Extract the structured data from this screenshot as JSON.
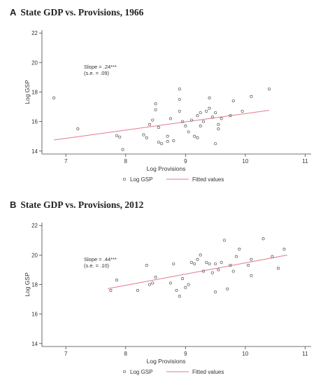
{
  "chart_data": [
    {
      "panel": "A",
      "type": "scatter",
      "title": "State GDP vs. Provisions, 1966",
      "xlabel": "Log Provisions",
      "ylabel": "Log GSP",
      "xlim": [
        6.6,
        11.1
      ],
      "ylim": [
        13.8,
        22.2
      ],
      "xticks": [
        7,
        8,
        9,
        10,
        11
      ],
      "yticks": [
        14,
        16,
        18,
        20,
        22
      ],
      "grid": false,
      "legend_position": "bottom-center",
      "annotation": [
        "Slope = .24***",
        "(s.e. = .09)"
      ],
      "series": [
        {
          "name": "Log GSP",
          "kind": "scatter",
          "color": "#555555",
          "points": [
            [
              6.8,
              17.6
            ],
            [
              7.2,
              15.5
            ],
            [
              7.85,
              15.05
            ],
            [
              7.9,
              14.95
            ],
            [
              7.95,
              14.1
            ],
            [
              8.3,
              15.1
            ],
            [
              8.35,
              14.9
            ],
            [
              8.4,
              15.8
            ],
            [
              8.45,
              16.1
            ],
            [
              8.5,
              17.2
            ],
            [
              8.5,
              16.8
            ],
            [
              8.55,
              15.6
            ],
            [
              8.55,
              14.6
            ],
            [
              8.6,
              14.5
            ],
            [
              8.7,
              15.0
            ],
            [
              8.7,
              14.65
            ],
            [
              8.75,
              16.2
            ],
            [
              8.8,
              14.7
            ],
            [
              8.9,
              18.2
            ],
            [
              8.9,
              17.5
            ],
            [
              8.9,
              16.7
            ],
            [
              8.95,
              16.0
            ],
            [
              9.0,
              15.7
            ],
            [
              9.05,
              15.3
            ],
            [
              9.1,
              16.1
            ],
            [
              9.15,
              15.0
            ],
            [
              9.2,
              14.9
            ],
            [
              9.2,
              16.4
            ],
            [
              9.25,
              15.7
            ],
            [
              9.25,
              16.6
            ],
            [
              9.3,
              16.0
            ],
            [
              9.35,
              16.7
            ],
            [
              9.4,
              17.6
            ],
            [
              9.4,
              16.9
            ],
            [
              9.45,
              16.3
            ],
            [
              9.5,
              16.6
            ],
            [
              9.5,
              14.5
            ],
            [
              9.55,
              15.5
            ],
            [
              9.55,
              15.8
            ],
            [
              9.6,
              16.2
            ],
            [
              9.75,
              16.4
            ],
            [
              9.8,
              17.4
            ],
            [
              9.95,
              16.7
            ],
            [
              10.1,
              17.7
            ],
            [
              10.4,
              18.2
            ]
          ]
        },
        {
          "name": "Fitted values",
          "kind": "line",
          "color": "#e07a8a",
          "points": [
            [
              6.8,
              14.75
            ],
            [
              10.4,
              16.76
            ]
          ]
        }
      ]
    },
    {
      "panel": "B",
      "type": "scatter",
      "title": "State GDP vs. Provisions, 2012",
      "xlabel": "Log Provisions",
      "ylabel": "Log GSP",
      "xlim": [
        6.6,
        11.1
      ],
      "ylim": [
        13.8,
        22.2
      ],
      "xticks": [
        7,
        8,
        9,
        10,
        11
      ],
      "yticks": [
        14,
        16,
        18,
        20,
        22
      ],
      "grid": false,
      "legend_position": "bottom-center",
      "annotation": [
        "Slope = .44***",
        "(s.e. = .10)"
      ],
      "series": [
        {
          "name": "Log GSP",
          "kind": "scatter",
          "color": "#555555",
          "points": [
            [
              7.75,
              17.6
            ],
            [
              7.85,
              18.3
            ],
            [
              8.2,
              17.6
            ],
            [
              8.35,
              19.3
            ],
            [
              8.4,
              18.0
            ],
            [
              8.45,
              18.1
            ],
            [
              8.5,
              18.5
            ],
            [
              8.75,
              18.1
            ],
            [
              8.8,
              19.4
            ],
            [
              8.85,
              17.6
            ],
            [
              8.9,
              17.2
            ],
            [
              8.95,
              18.4
            ],
            [
              9.0,
              17.8
            ],
            [
              9.05,
              18.0
            ],
            [
              9.1,
              19.5
            ],
            [
              9.15,
              19.4
            ],
            [
              9.2,
              19.7
            ],
            [
              9.25,
              20.0
            ],
            [
              9.3,
              18.9
            ],
            [
              9.35,
              19.5
            ],
            [
              9.4,
              19.4
            ],
            [
              9.45,
              18.8
            ],
            [
              9.5,
              19.4
            ],
            [
              9.5,
              17.5
            ],
            [
              9.55,
              19.0
            ],
            [
              9.6,
              19.5
            ],
            [
              9.65,
              21.0
            ],
            [
              9.7,
              17.7
            ],
            [
              9.75,
              19.3
            ],
            [
              9.8,
              18.9
            ],
            [
              9.85,
              19.9
            ],
            [
              9.9,
              20.4
            ],
            [
              10.05,
              19.3
            ],
            [
              10.1,
              19.7
            ],
            [
              10.1,
              18.6
            ],
            [
              10.3,
              21.1
            ],
            [
              10.45,
              19.9
            ],
            [
              10.55,
              19.1
            ],
            [
              10.65,
              20.4
            ]
          ]
        },
        {
          "name": "Fitted values",
          "kind": "line",
          "color": "#e07a8a",
          "points": [
            [
              7.7,
              17.72
            ],
            [
              10.7,
              20.0
            ]
          ]
        }
      ]
    }
  ]
}
